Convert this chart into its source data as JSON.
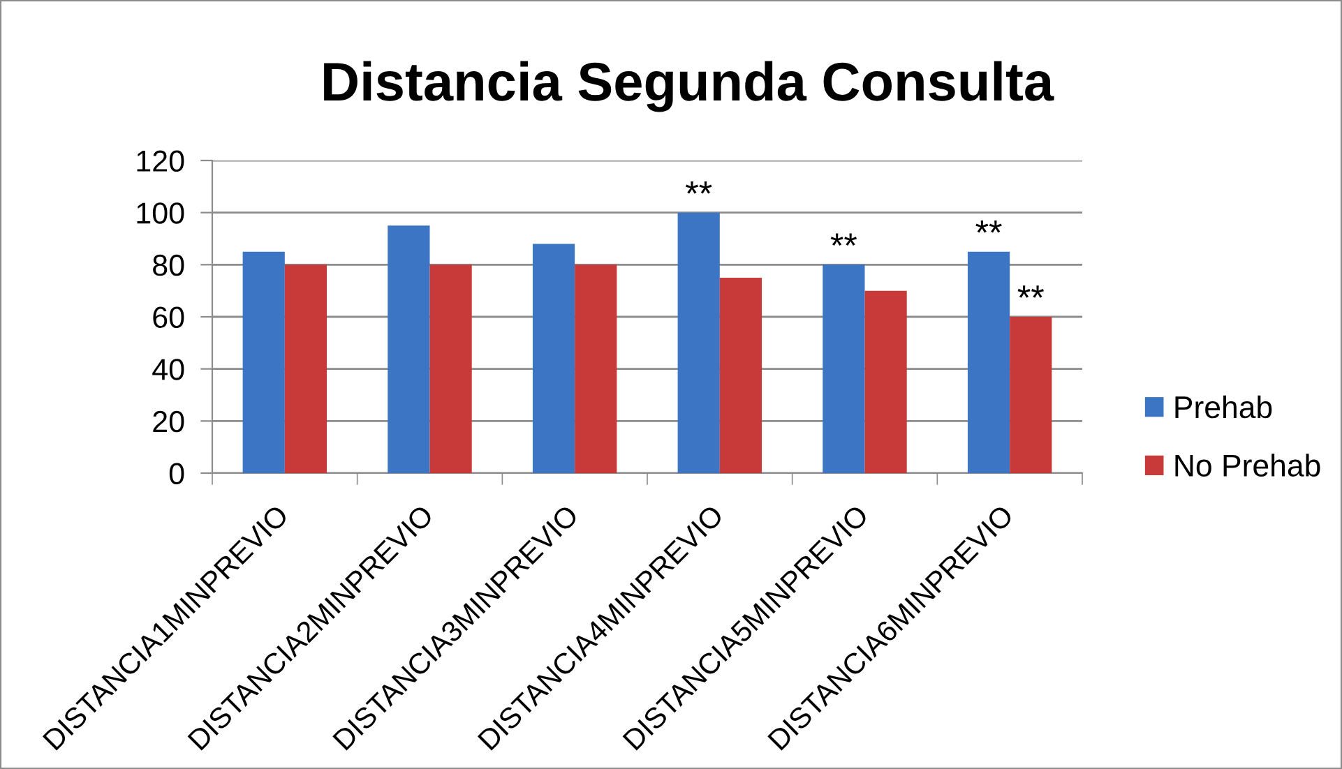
{
  "chart_data": {
    "type": "bar",
    "title": "Distancia Segunda Consulta",
    "categories": [
      "DISTANCIA1MINPREVIO",
      "DISTANCIA2MINPREVIO",
      "DISTANCIA3MINPREVIO",
      "DISTANCIA4MINPREVIO",
      "DISTANCIA5MINPREVIO",
      "DISTANCIA6MINPREVIO"
    ],
    "series": [
      {
        "name": "Prehab",
        "color": "#3b75c4",
        "values": [
          85,
          95,
          88,
          100,
          80,
          85
        ]
      },
      {
        "name": "No Prehab",
        "color": "#c83a3a",
        "values": [
          80,
          80,
          80,
          75,
          70,
          60
        ]
      }
    ],
    "ylim": [
      0,
      120
    ],
    "yticks": [
      0,
      20,
      40,
      60,
      80,
      100,
      120
    ],
    "grid": "y",
    "legend": "bottom right",
    "annotations": [
      {
        "text": "**",
        "x": "DISTANCIA4MINPREVIO",
        "y": 100
      },
      {
        "text": "**",
        "x": "DISTANCIA5MINPREVIO",
        "y": 80
      },
      {
        "text": "**",
        "x": "DISTANCIA6MINPREVIO",
        "y": 85
      },
      {
        "text": "**",
        "x": "DISTANCIA6MINPREVIO",
        "y": 60
      }
    ]
  }
}
